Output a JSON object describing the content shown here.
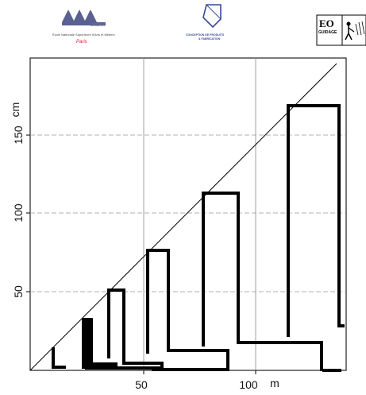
{
  "header": {
    "ensam": {
      "word": "ENSAM",
      "subtitle": "École Nationale Supérieure d'Arts et Métiers",
      "city": "Paris"
    },
    "cpf": {
      "line1": "CONCEPTION DE PRODUITS",
      "line2": "& FABRICATION"
    },
    "eo": {
      "title": "EO",
      "subtitle": "GUIDAGE"
    }
  },
  "diagram": {
    "y_unit": "cm",
    "x_unit": "m",
    "y_ticks": [
      "50",
      "100",
      "150"
    ],
    "x_ticks": [
      "50",
      "100"
    ]
  }
}
